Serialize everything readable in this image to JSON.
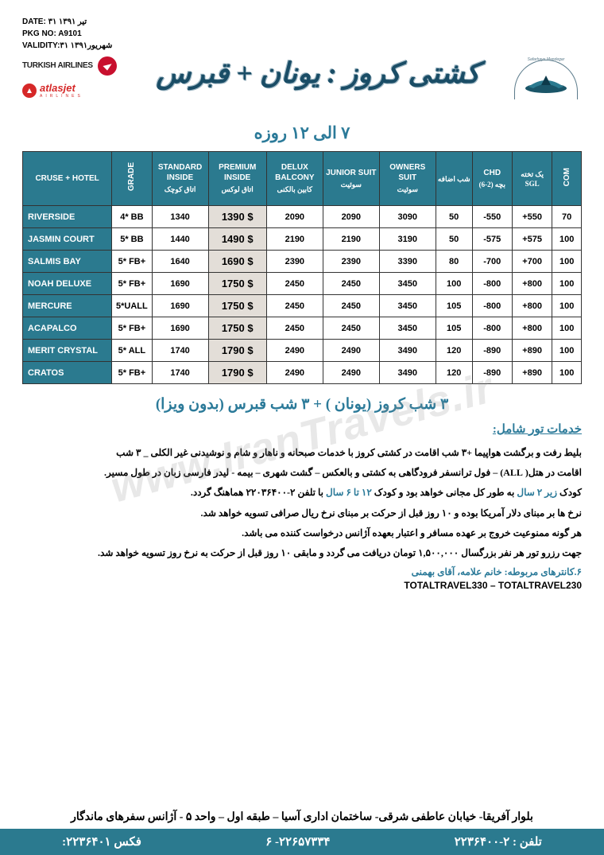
{
  "meta": {
    "date_label": "DATE:",
    "date_value": "۳۱ تیر ۱۳۹۱",
    "pkg_label": "PKG NO:",
    "pkg_value": "A9101",
    "validity_label": "VALIDITY:",
    "validity_value": "۳۱ شهریور۱۳۹۱"
  },
  "airlines": {
    "turkish": "TURKISH AIRLINES",
    "atlas": "atlasjet",
    "atlas_sub": "AIRLINES"
  },
  "title": "کشتی کروز : یونان + قبرس",
  "subtitle": "۷ الی ۱۲ روزه",
  "columns": {
    "hotel": "CRUSE + HOTEL",
    "grade": "GRADE",
    "standard": "STANDARD INSIDE",
    "standard_sub": "اتاق کوچک",
    "premium": "PREMIUM INSIDE",
    "premium_sub": "اتاق لوکس",
    "delux": "DELUX BALCONY",
    "delux_sub": "کابین بالکنی",
    "junior": "JUNIOR SUIT",
    "junior_sub": "سوئیت",
    "owners": "OWNERS SUIT",
    "owners_sub": "سوئیت",
    "extra": "شب اضافه",
    "chd": "CHD",
    "chd_sub": "بچه (2-6)",
    "sgl": "یک تخته SGL",
    "com": "COM"
  },
  "rows": [
    {
      "hotel": "RIVERSIDE",
      "grade": "4* BB",
      "std": "1340",
      "prem": "1390 $",
      "dlx": "2090",
      "jr": "2090",
      "own": "3090",
      "ext": "50",
      "chd": "-550",
      "sgl": "+550",
      "com": "70"
    },
    {
      "hotel": "JASMIN COURT",
      "grade": "5* BB",
      "std": "1440",
      "prem": "1490 $",
      "dlx": "2190",
      "jr": "2190",
      "own": "3190",
      "ext": "50",
      "chd": "-575",
      "sgl": "+575",
      "com": "100"
    },
    {
      "hotel": "SALMIS BAY",
      "grade": "5* FB+",
      "std": "1640",
      "prem": "1690 $",
      "dlx": "2390",
      "jr": "2390",
      "own": "3390",
      "ext": "80",
      "chd": "-700",
      "sgl": "+700",
      "com": "100"
    },
    {
      "hotel": "NOAH DELUXE",
      "grade": "5* FB+",
      "std": "1690",
      "prem": "1750 $",
      "dlx": "2450",
      "jr": "2450",
      "own": "3450",
      "ext": "100",
      "chd": "-800",
      "sgl": "+800",
      "com": "100"
    },
    {
      "hotel": "MERCURE",
      "grade": "5*UALL",
      "std": "1690",
      "prem": "1750 $",
      "dlx": "2450",
      "jr": "2450",
      "own": "3450",
      "ext": "105",
      "chd": "-800",
      "sgl": "+800",
      "com": "100"
    },
    {
      "hotel": "ACAPALCO",
      "grade": "5* FB+",
      "std": "1690",
      "prem": "1750 $",
      "dlx": "2450",
      "jr": "2450",
      "own": "3450",
      "ext": "105",
      "chd": "-800",
      "sgl": "+800",
      "com": "100"
    },
    {
      "hotel": "MERIT CRYSTAL",
      "grade": "5* ALL",
      "std": "1740",
      "prem": "1790 $",
      "dlx": "2490",
      "jr": "2490",
      "own": "3490",
      "ext": "120",
      "chd": "-890",
      "sgl": "+890",
      "com": "100"
    },
    {
      "hotel": "CRATOS",
      "grade": "5* FB+",
      "std": "1740",
      "prem": "1790 $",
      "dlx": "2490",
      "jr": "2490",
      "own": "3490",
      "ext": "120",
      "chd": "-890",
      "sgl": "+890",
      "com": "100"
    }
  ],
  "section2_title": "۳ شب کروز (یونان ) + ۳ شب قبرس (بدون ویزا)",
  "services_heading": "خدمات تور شامل:",
  "services_lines": [
    "بلیط رفت و برگشت هواپیما +۳ شب اقامت در کشتی کروز  با خدمات صبحانه و ناهار و شام و نوشیدنی غیر الکلی _ ۳ شب",
    "اقامت در هتل( ALL) – فول ترانسفر فرودگاهی به کشتی و بالعکس – گشت شهری – بیمه - لیدر فارسی زبان در طول مسیر.",
    "کودک <span class='accent'>زیر ۲ سال</span> به طور کل مجانی خواهد بود و کودک <span class='accent'>۱۲ تا ۶ سال</span> با تلفن ۲-۲۲۰۳۶۴۰۰ هماهنگ گردد.",
    "نرخ ها بر مبنای دلار آمریکا بوده و ۱۰ روز قبل از حرکت بر مبنای نرخ ریال صرافی تسویه خواهد شد.",
    "هر گونه ممنوعیت خروج بر عهده مسافر و اعتبار بعهده آژانس درخواست کننده می باشد.",
    "جهت رزرو تور هر نفر بزرگسال ۱,۵۰۰,۰۰۰ تومان دریافت می گردد و مابقی ۱۰ روز قبل از حرکت به نرخ روز تسویه خواهد شد."
  ],
  "counters": "۶.کانترهای مربوطه: خانم علامه، آقای بهمنی",
  "codes": "TOTALTRAVEL330 – TOTALTRAVEL230",
  "address": "بلوار آفریقا- خیابان عاطفی شرقی- ساختمان اداری آسیا – طبقه اول – واحد ۵ - آژانس سفرهای ماندگار",
  "contacts": {
    "tel_label": "تلفن :",
    "tel": "۲-۲۲۳۶۴۰۰",
    "mid": "۲۲۶۵۷۳۳۴- ۶",
    "fax_label": "فکس",
    "fax": "۲۲۳۶۴۰۱:"
  },
  "watermark": "www.IranTravels.ir",
  "colors": {
    "teal": "#2b7a8f",
    "accent": "#2b7a99",
    "premium_bg": "#e3ded8"
  }
}
